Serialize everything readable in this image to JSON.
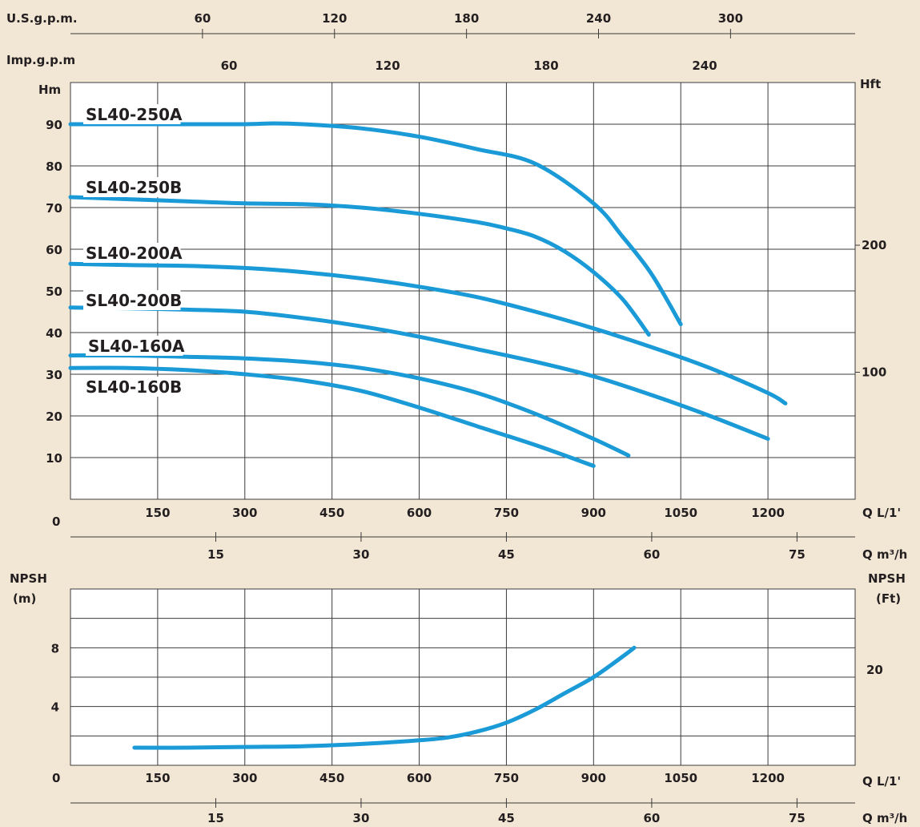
{
  "colors": {
    "background": "#f2e6d4",
    "plot_bg": "#ffffff",
    "curve": "#1a9ad6",
    "grid": "#3c3c3c"
  },
  "chart_data": [
    {
      "type": "line",
      "title": "",
      "top_scales": [
        {
          "label": "U.S.g.p.m.",
          "ticks": [
            "60",
            "120",
            "180",
            "240",
            "300"
          ]
        },
        {
          "label": "Imp.g.p.m",
          "ticks": [
            "60",
            "120",
            "180",
            "240"
          ]
        }
      ],
      "ylabel": "Hm",
      "ylabel_right": "Hft",
      "yticks": [
        "90",
        "80",
        "70",
        "60",
        "50",
        "40",
        "30",
        "20",
        "10"
      ],
      "y_zero_label": "0",
      "yticks_right": [
        "200",
        "100"
      ],
      "ylim": [
        0,
        100
      ],
      "xlim": [
        0,
        1350
      ],
      "xlabel": "Q L/1'",
      "xticks": [
        "150",
        "300",
        "450",
        "600",
        "750",
        "900",
        "1050",
        "1200"
      ],
      "x2label": "Q m³/h",
      "x2ticks": [
        "15",
        "30",
        "45",
        "60",
        "75"
      ],
      "series": [
        {
          "name": "SL40-250A",
          "x": [
            0,
            100,
            200,
            300,
            350,
            400,
            500,
            600,
            700,
            800,
            900,
            950,
            1000,
            1050
          ],
          "y": [
            90,
            90,
            90,
            90,
            90.2,
            90,
            89,
            87,
            84,
            80.5,
            71,
            63,
            54,
            42
          ]
        },
        {
          "name": "SL40-250B",
          "x": [
            0,
            100,
            200,
            300,
            400,
            500,
            600,
            700,
            750,
            800,
            850,
            900,
            950,
            995
          ],
          "y": [
            72.5,
            72,
            71.5,
            71,
            70.8,
            70,
            68.5,
            66.5,
            65,
            63,
            59.5,
            54.5,
            48,
            39.5
          ]
        },
        {
          "name": "SL40-200A",
          "x": [
            0,
            100,
            200,
            300,
            400,
            500,
            600,
            700,
            800,
            900,
            1000,
            1100,
            1200,
            1230
          ],
          "y": [
            56.5,
            56.2,
            56,
            55.5,
            54.5,
            53,
            51,
            48.5,
            45,
            41,
            36.5,
            31.5,
            25.5,
            23
          ]
        },
        {
          "name": "SL40-200B",
          "x": [
            0,
            100,
            200,
            300,
            400,
            500,
            600,
            700,
            800,
            900,
            1000,
            1100,
            1200
          ],
          "y": [
            46,
            45.8,
            45.5,
            45,
            43.5,
            41.5,
            39,
            36,
            33,
            29.5,
            25,
            20,
            14.5
          ]
        },
        {
          "name": "SL40-160A",
          "x": [
            0,
            100,
            200,
            300,
            400,
            500,
            600,
            700,
            800,
            900,
            960
          ],
          "y": [
            34.5,
            34.5,
            34.2,
            33.8,
            33,
            31.5,
            29,
            25.5,
            20.5,
            14.5,
            10.5
          ]
        },
        {
          "name": "SL40-160B",
          "x": [
            0,
            100,
            200,
            300,
            400,
            500,
            600,
            700,
            800,
            900
          ],
          "y": [
            31.5,
            31.5,
            31,
            30,
            28.5,
            26,
            22,
            17.5,
            13,
            8
          ]
        }
      ],
      "grid": true,
      "legend": "labels-on-curves"
    },
    {
      "type": "line",
      "title": "",
      "ylabel": "NPSH",
      "ylabel_unit": "(m)",
      "ylabel_right": "NPSH",
      "ylabel_right_unit": "(Ft)",
      "yticks": [
        "8",
        "4"
      ],
      "y_zero_label": "0",
      "yticks_right": [
        "20"
      ],
      "ylim": [
        0,
        12
      ],
      "xlim": [
        0,
        1350
      ],
      "xlabel": "Q L/1'",
      "xticks": [
        "150",
        "300",
        "450",
        "600",
        "750",
        "900",
        "1050",
        "1200"
      ],
      "x2label": "Q m³/h",
      "x2ticks": [
        "15",
        "30",
        "45",
        "60",
        "75"
      ],
      "series": [
        {
          "name": "",
          "x": [
            110,
            200,
            300,
            400,
            500,
            600,
            650,
            700,
            750,
            800,
            850,
            900,
            950,
            970
          ],
          "y": [
            1.2,
            1.2,
            1.25,
            1.3,
            1.45,
            1.7,
            1.9,
            2.3,
            2.9,
            3.8,
            4.9,
            6.0,
            7.4,
            8.0
          ]
        }
      ],
      "grid": true,
      "legend": "none"
    }
  ]
}
